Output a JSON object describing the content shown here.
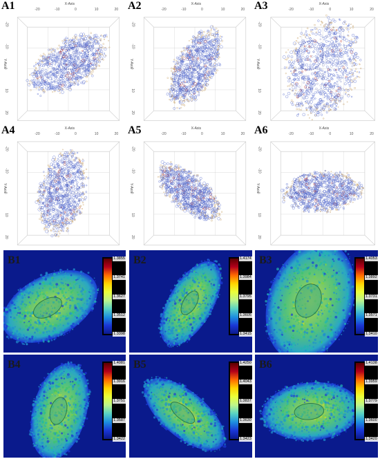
{
  "a_panels": [
    {
      "label": "A1",
      "x_axis_title": "X-Axis",
      "y_axis_title": "Y-Axis"
    },
    {
      "label": "A2",
      "x_axis_title": "X-Axis",
      "y_axis_title": "Y-Axis"
    },
    {
      "label": "A3",
      "x_axis_title": "X-Axis",
      "y_axis_title": "Y-Axis"
    },
    {
      "label": "A4",
      "x_axis_title": "X-Axis",
      "y_axis_title": "Y-Axis"
    },
    {
      "label": "A5",
      "x_axis_title": "X-Axis",
      "y_axis_title": "Y-Axis"
    },
    {
      "label": "A6",
      "x_axis_title": "X-Axis",
      "y_axis_title": "Y-Axis"
    }
  ],
  "x_ticks": [
    "-20",
    "-10",
    "0",
    "10",
    "20"
  ],
  "y_ticks": [
    "-20",
    "-10",
    "0",
    "10",
    "20"
  ],
  "b_panels": [
    {
      "label": "B1",
      "colorbar": [
        "1.3855",
        "1.3741",
        "1.3627",
        "1.3512",
        "1.3398"
      ]
    },
    {
      "label": "B2",
      "colorbar": [
        "1.4174",
        "1.3984",
        "1.3795",
        "1.3605",
        "1.3415"
      ]
    },
    {
      "label": "B3",
      "colorbar": [
        "1.4053",
        "1.3892",
        "1.3731",
        "1.3571",
        "1.3410"
      ]
    },
    {
      "label": "B4",
      "colorbar": [
        "1.4081",
        "1.3916",
        "1.3751",
        "1.3587",
        "1.3422"
      ]
    },
    {
      "label": "B5",
      "colorbar": [
        "1.4250",
        "1.4043",
        "1.3837",
        "1.3630",
        "1.3423"
      ]
    },
    {
      "label": "B6",
      "colorbar": [
        "1.4138",
        "1.3959",
        "1.3779",
        "1.3600",
        "1.3420"
      ]
    }
  ],
  "colors": {
    "b_background": "#0a1a8c",
    "point_blue": "#5a6fd0",
    "point_red": "#c0392b",
    "point_tan": "#c9a46a",
    "grid": "#c8c8c8"
  }
}
